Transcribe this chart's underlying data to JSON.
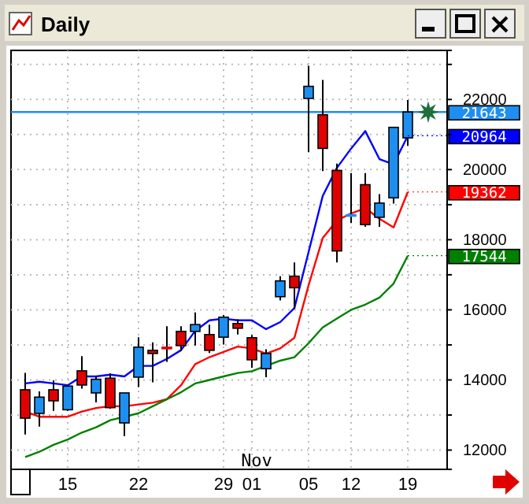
{
  "chart_data": {
    "type": "candlestick",
    "title": "Daily",
    "categories": [
      null,
      null,
      null,
      "15",
      null,
      null,
      null,
      null,
      "22",
      null,
      null,
      null,
      null,
      null,
      "29",
      null,
      "01",
      null,
      null,
      null,
      "05",
      null,
      null,
      "12",
      null,
      null,
      null,
      "19"
    ],
    "ohlc": [
      [
        13720,
        14200,
        12445,
        12910
      ],
      [
        13045,
        13675,
        12670,
        13510
      ],
      [
        13720,
        13990,
        13120,
        13405
      ],
      [
        13150,
        13855,
        13120,
        13825
      ],
      [
        14260,
        14680,
        13750,
        13855
      ],
      [
        13630,
        14095,
        13360,
        14020
      ],
      [
        14050,
        14185,
        13180,
        13210
      ],
      [
        12775,
        13630,
        12400,
        13630
      ],
      [
        14080,
        15220,
        13795,
        14935
      ],
      [
        14845,
        15070,
        13930,
        14755
      ],
      [
        14935,
        15535,
        14515,
        14935
      ],
      [
        15385,
        15535,
        14830,
        14980
      ],
      [
        15385,
        15925,
        14980,
        15580
      ],
      [
        15295,
        15580,
        14770,
        14845
      ],
      [
        15220,
        15850,
        15010,
        15790
      ],
      [
        15610,
        15730,
        15295,
        15475
      ],
      [
        15205,
        15280,
        14350,
        14575
      ],
      [
        14320,
        14875,
        14080,
        14755
      ],
      [
        16375,
        16960,
        16270,
        16825
      ],
      [
        16960,
        17350,
        16030,
        16630
      ],
      [
        22030,
        22960,
        20500,
        22375
      ],
      [
        21565,
        22555,
        19960,
        20605
      ],
      [
        19975,
        20170,
        17350,
        17680
      ],
      [
        18715,
        19900,
        18475,
        18715
      ],
      [
        19570,
        19900,
        18370,
        18430
      ],
      [
        18640,
        19300,
        18370,
        19045
      ],
      [
        19195,
        21205,
        19030,
        21205
      ],
      [
        20905,
        21985,
        20680,
        21643
      ]
    ],
    "colors": [
      "#e00000",
      "#1e8ff0",
      "#e00000",
      "#1e8ff0",
      "#e00000",
      "#1e8ff0",
      "#e00000",
      "#1e8ff0",
      "#1e8ff0",
      "#e00000",
      "#e00000",
      "#e00000",
      "#1e8ff0",
      "#e00000",
      "#1e8ff0",
      "#e00000",
      "#e00000",
      "#1e8ff0",
      "#1e8ff0",
      "#e00000",
      "#1e8ff0",
      "#e00000",
      "#e00000",
      "#1e8ff0",
      "#e00000",
      "#1e8ff0",
      "#1e8ff0",
      "#1e8ff0"
    ],
    "series": [
      {
        "type": "line",
        "color": "#0000ff",
        "values": [
          13900,
          13950,
          13900,
          13850,
          14100,
          14100,
          14150,
          14100,
          14400,
          14400,
          14600,
          14850,
          15400,
          15700,
          15750,
          15700,
          15700,
          15450,
          15650,
          16050,
          17650,
          19250,
          20050,
          20600,
          21100,
          20300,
          20150,
          20964
        ],
        "value_labels": [
          null,
          null,
          null,
          null,
          null,
          null,
          null,
          null,
          null,
          null,
          null,
          null,
          null,
          null,
          null,
          null,
          null,
          null,
          null,
          null,
          null,
          null,
          null,
          null,
          null,
          null,
          null,
          "20964"
        ]
      },
      {
        "type": "line",
        "color": "#ff0000",
        "values": [
          13100,
          12950,
          12950,
          12950,
          13100,
          13200,
          13250,
          13250,
          13300,
          13350,
          13450,
          13850,
          14450,
          14650,
          14800,
          14950,
          14900,
          14750,
          14900,
          15200,
          16700,
          18050,
          18550,
          18750,
          18900,
          18600,
          18350,
          19362
        ],
        "value_labels": [
          null,
          null,
          null,
          null,
          null,
          null,
          null,
          null,
          null,
          null,
          null,
          null,
          null,
          null,
          null,
          null,
          null,
          null,
          null,
          null,
          null,
          null,
          null,
          null,
          null,
          null,
          null,
          "19362"
        ]
      },
      {
        "type": "line",
        "color": "#008000",
        "values": [
          11800,
          11950,
          12150,
          12300,
          12500,
          12650,
          12850,
          12950,
          13050,
          13250,
          13450,
          13650,
          13900,
          14000,
          14100,
          14200,
          14250,
          14400,
          14550,
          14650,
          15050,
          15500,
          15750,
          16000,
          16150,
          16350,
          16750,
          17544
        ],
        "value_labels": [
          null,
          null,
          null,
          null,
          null,
          null,
          null,
          null,
          null,
          null,
          null,
          null,
          null,
          null,
          null,
          null,
          null,
          null,
          null,
          null,
          null,
          null,
          null,
          null,
          null,
          null,
          null,
          "17544"
        ]
      }
    ],
    "ylim": [
      11450,
      23400
    ],
    "yticks": [
      12000,
      {
        "value": 13000,
        "label": null
      },
      14000,
      {
        "value": 15000,
        "label": null
      },
      16000,
      {
        "value": 17000,
        "label": null
      },
      18000,
      {
        "value": 19000,
        "label": null
      },
      20000,
      {
        "value": 21000,
        "label": null
      },
      22000,
      {
        "value": 23000,
        "label": null
      }
    ],
    "grid": true,
    "ref_lines": [
      {
        "axis": "y",
        "value": 21643,
        "label": "21643",
        "color": "#1e8ff0"
      }
    ],
    "annotations": [
      "Nov"
    ]
  }
}
